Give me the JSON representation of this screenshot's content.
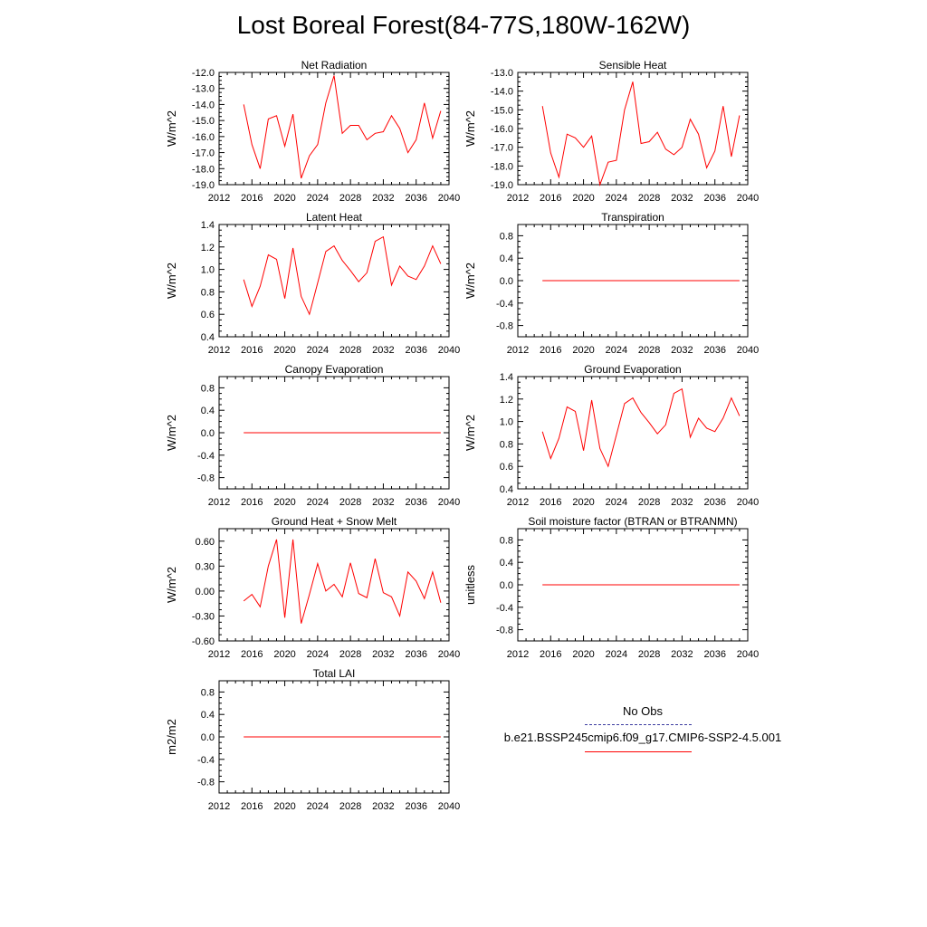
{
  "title": "Lost Boreal Forest(84-77S,180W-162W)",
  "colors": {
    "series": "#ff0000",
    "obs": "#3c3ca0"
  },
  "x_ticks": [
    "2012",
    "2016",
    "2020",
    "2024",
    "2028",
    "2032",
    "2036",
    "2040"
  ],
  "chart_data": [
    {
      "type": "line",
      "title": "Net Radiation",
      "ylabel": "W/m^2",
      "xlim": [
        2012,
        2040
      ],
      "ylim": [
        -19,
        -12
      ],
      "yticks": [
        -12,
        -13,
        -14,
        -15,
        -16,
        -17,
        -18,
        -19
      ],
      "ytick_labels": [
        "-12.0",
        "-13.0",
        "-14.0",
        "-15.0",
        "-16.0",
        "-17.0",
        "-18.0",
        "-19.0"
      ],
      "x": [
        2015,
        2016,
        2017,
        2018,
        2019,
        2020,
        2021,
        2022,
        2023,
        2024,
        2025,
        2026,
        2027,
        2028,
        2029,
        2030,
        2031,
        2032,
        2033,
        2034,
        2035,
        2036,
        2037,
        2038,
        2039
      ],
      "values": [
        -14.0,
        -16.5,
        -18.0,
        -14.9,
        -14.7,
        -16.6,
        -14.6,
        -18.6,
        -17.2,
        -16.5,
        -13.9,
        -12.2,
        -15.8,
        -15.3,
        -15.3,
        -16.2,
        -15.8,
        -15.7,
        -14.7,
        -15.5,
        -17.0,
        -16.2,
        -13.9,
        -16.1,
        -14.4
      ],
      "series": [
        {
          "name": "b.e21.BSSP245cmip6.f09_g17.CMIP6-SSP2-4.5.001"
        }
      ]
    },
    {
      "type": "line",
      "title": "Sensible Heat",
      "ylabel": "W/m^2",
      "xlim": [
        2012,
        2040
      ],
      "ylim": [
        -19,
        -13
      ],
      "yticks": [
        -13,
        -14,
        -15,
        -16,
        -17,
        -18,
        -19
      ],
      "ytick_labels": [
        "-13.0",
        "-14.0",
        "-15.0",
        "-16.0",
        "-17.0",
        "-18.0",
        "-19.0"
      ],
      "x": [
        2015,
        2016,
        2017,
        2018,
        2019,
        2020,
        2021,
        2022,
        2023,
        2024,
        2025,
        2026,
        2027,
        2028,
        2029,
        2030,
        2031,
        2032,
        2033,
        2034,
        2035,
        2036,
        2037,
        2038,
        2039
      ],
      "values": [
        -14.8,
        -17.3,
        -18.6,
        -16.3,
        -16.5,
        -17.0,
        -16.4,
        -19.0,
        -17.8,
        -17.7,
        -15.0,
        -13.5,
        -16.8,
        -16.7,
        -16.2,
        -17.1,
        -17.4,
        -17.0,
        -15.5,
        -16.3,
        -18.1,
        -17.2,
        -14.8,
        -17.5,
        -15.3
      ],
      "series": [
        {
          "name": "b.e21.BSSP245cmip6.f09_g17.CMIP6-SSP2-4.5.001"
        }
      ]
    },
    {
      "type": "line",
      "title": "Latent Heat",
      "ylabel": "W/m^2",
      "xlim": [
        2012,
        2040
      ],
      "ylim": [
        0.4,
        1.4
      ],
      "yticks": [
        1.4,
        1.2,
        1.0,
        0.8,
        0.6,
        0.4
      ],
      "ytick_labels": [
        "1.4",
        "1.2",
        "1.0",
        "0.8",
        "0.6",
        "0.4"
      ],
      "x": [
        2015,
        2016,
        2017,
        2018,
        2019,
        2020,
        2021,
        2022,
        2023,
        2024,
        2025,
        2026,
        2027,
        2028,
        2029,
        2030,
        2031,
        2032,
        2033,
        2034,
        2035,
        2036,
        2037,
        2038,
        2039
      ],
      "values": [
        0.91,
        0.67,
        0.85,
        1.13,
        1.09,
        0.74,
        1.19,
        0.76,
        0.6,
        0.88,
        1.16,
        1.21,
        1.08,
        0.99,
        0.89,
        0.97,
        1.25,
        1.29,
        0.86,
        1.03,
        0.94,
        0.91,
        1.03,
        1.21,
        1.05
      ],
      "series": [
        {
          "name": "b.e21.BSSP245cmip6.f09_g17.CMIP6-SSP2-4.5.001"
        }
      ]
    },
    {
      "type": "line",
      "title": "Transpiration",
      "ylabel": "W/m^2",
      "xlim": [
        2012,
        2040
      ],
      "ylim": [
        -1.0,
        1.0
      ],
      "yticks": [
        0.8,
        0.4,
        0.0,
        -0.4,
        -0.8
      ],
      "ytick_labels": [
        "0.8",
        "0.4",
        "0.0",
        "-0.4",
        "-0.8"
      ],
      "x": [
        2015,
        2039
      ],
      "values": [
        0.0,
        0.0
      ],
      "series": [
        {
          "name": "b.e21.BSSP245cmip6.f09_g17.CMIP6-SSP2-4.5.001"
        }
      ]
    },
    {
      "type": "line",
      "title": "Canopy Evaporation",
      "ylabel": "W/m^2",
      "xlim": [
        2012,
        2040
      ],
      "ylim": [
        -1.0,
        1.0
      ],
      "yticks": [
        0.8,
        0.4,
        0.0,
        -0.4,
        -0.8
      ],
      "ytick_labels": [
        "0.8",
        "0.4",
        "0.0",
        "-0.4",
        "-0.8"
      ],
      "x": [
        2015,
        2039
      ],
      "values": [
        0.0,
        0.0
      ],
      "series": [
        {
          "name": "b.e21.BSSP245cmip6.f09_g17.CMIP6-SSP2-4.5.001"
        }
      ]
    },
    {
      "type": "line",
      "title": "Ground Evaporation",
      "ylabel": "W/m^2",
      "xlim": [
        2012,
        2040
      ],
      "ylim": [
        0.4,
        1.4
      ],
      "yticks": [
        1.4,
        1.2,
        1.0,
        0.8,
        0.6,
        0.4
      ],
      "ytick_labels": [
        "1.4",
        "1.2",
        "1.0",
        "0.8",
        "0.6",
        "0.4"
      ],
      "x": [
        2015,
        2016,
        2017,
        2018,
        2019,
        2020,
        2021,
        2022,
        2023,
        2024,
        2025,
        2026,
        2027,
        2028,
        2029,
        2030,
        2031,
        2032,
        2033,
        2034,
        2035,
        2036,
        2037,
        2038,
        2039
      ],
      "values": [
        0.91,
        0.67,
        0.85,
        1.13,
        1.09,
        0.74,
        1.19,
        0.76,
        0.6,
        0.88,
        1.16,
        1.21,
        1.08,
        0.99,
        0.89,
        0.97,
        1.25,
        1.29,
        0.86,
        1.03,
        0.94,
        0.91,
        1.03,
        1.21,
        1.05
      ],
      "series": [
        {
          "name": "b.e21.BSSP245cmip6.f09_g17.CMIP6-SSP2-4.5.001"
        }
      ]
    },
    {
      "type": "line",
      "title": "Ground Heat + Snow Melt",
      "ylabel": "W/m^2",
      "xlim": [
        2012,
        2040
      ],
      "ylim": [
        -0.6,
        0.75
      ],
      "yticks": [
        0.6,
        0.3,
        0.0,
        -0.3,
        -0.6
      ],
      "ytick_labels": [
        "0.60",
        "0.30",
        "0.00",
        "-0.30",
        "-0.60"
      ],
      "x": [
        2015,
        2016,
        2017,
        2018,
        2019,
        2020,
        2021,
        2022,
        2023,
        2024,
        2025,
        2026,
        2027,
        2028,
        2029,
        2030,
        2031,
        2032,
        2033,
        2034,
        2035,
        2036,
        2037,
        2038,
        2039
      ],
      "values": [
        -0.12,
        -0.04,
        -0.19,
        0.3,
        0.62,
        -0.32,
        0.62,
        -0.39,
        -0.04,
        0.33,
        0.0,
        0.08,
        -0.07,
        0.34,
        -0.03,
        -0.08,
        0.39,
        -0.02,
        -0.07,
        -0.3,
        0.23,
        0.12,
        -0.09,
        0.23,
        -0.14
      ],
      "series": [
        {
          "name": "b.e21.BSSP245cmip6.f09_g17.CMIP6-SSP2-4.5.001"
        }
      ]
    },
    {
      "type": "line",
      "title": "Soil moisture factor (BTRAN or BTRANMN)",
      "ylabel": "unitless",
      "xlim": [
        2012,
        2040
      ],
      "ylim": [
        -1.0,
        1.0
      ],
      "yticks": [
        0.8,
        0.4,
        0.0,
        -0.4,
        -0.8
      ],
      "ytick_labels": [
        "0.8",
        "0.4",
        "0.0",
        "-0.4",
        "-0.8"
      ],
      "x": [
        2015,
        2039
      ],
      "values": [
        0.0,
        0.0
      ],
      "series": [
        {
          "name": "b.e21.BSSP245cmip6.f09_g17.CMIP6-SSP2-4.5.001"
        }
      ]
    },
    {
      "type": "line",
      "title": "Total LAI",
      "ylabel": "m2/m2",
      "xlim": [
        2012,
        2040
      ],
      "ylim": [
        -1.0,
        1.0
      ],
      "yticks": [
        0.8,
        0.4,
        0.0,
        -0.4,
        -0.8
      ],
      "ytick_labels": [
        "0.8",
        "0.4",
        "0.0",
        "-0.4",
        "-0.8"
      ],
      "x": [
        2015,
        2039
      ],
      "values": [
        0.0,
        0.0
      ],
      "series": [
        {
          "name": "b.e21.BSSP245cmip6.f09_g17.CMIP6-SSP2-4.5.001"
        }
      ]
    }
  ],
  "legend": {
    "obs_label": "No Obs",
    "model_label": "b.e21.BSSP245cmip6.f09_g17.CMIP6-SSP2-4.5.001"
  }
}
